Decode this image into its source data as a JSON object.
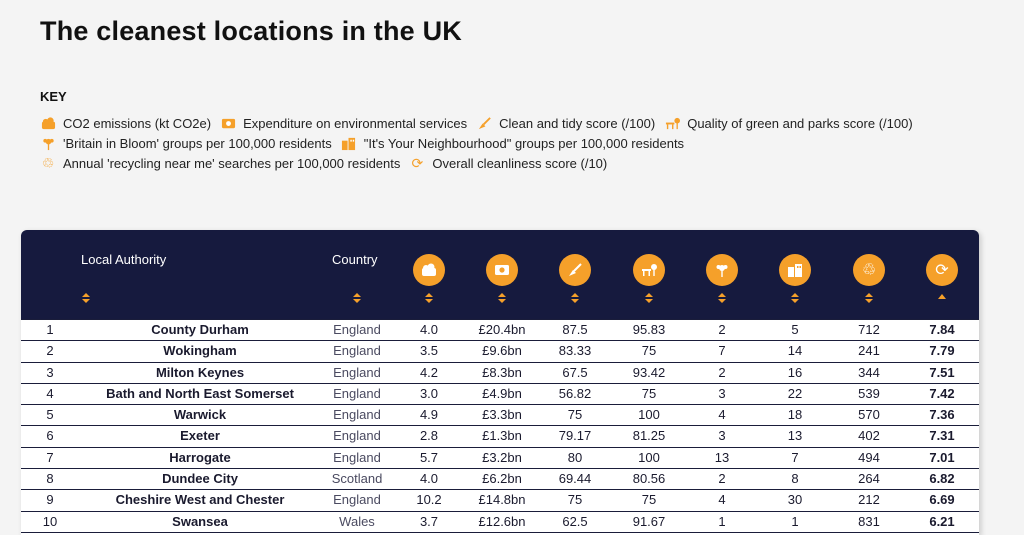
{
  "title": "The cleanest locations in the UK",
  "key": {
    "heading": "KEY",
    "items": [
      {
        "icon": "co2-cloud-icon",
        "label": "CO2 emissions (kt CO2e)"
      },
      {
        "icon": "money-icon",
        "label": "Expenditure on environmental services"
      },
      {
        "icon": "broom-icon",
        "label": "Clean and tidy score (/100)"
      },
      {
        "icon": "park-bench-icon",
        "label": "Quality of green and parks score (/100)"
      },
      {
        "icon": "flower-icon",
        "label": "'Britain in Bloom' groups per 100,000 residents"
      },
      {
        "icon": "neighbourhood-icon",
        "label": "\"It's Your Neighbourhood\" groups per 100,000 residents"
      },
      {
        "icon": "recycle-icon",
        "label": "Annual 'recycling near me' searches per 100,000 residents"
      },
      {
        "icon": "refresh-icon",
        "label": "Overall cleanliness score (/10)"
      }
    ]
  },
  "accent_color": "#f5a02a",
  "header_color": "#161a3e",
  "table": {
    "headers": {
      "authority": "Local Authority",
      "country": "Country"
    },
    "column_icons": [
      "co2-cloud-icon",
      "money-icon",
      "broom-icon",
      "park-bench-icon",
      "flower-icon",
      "neighbourhood-icon",
      "recycle-icon",
      "refresh-icon"
    ],
    "rows": [
      {
        "rank": "1",
        "authority": "County Durham",
        "country": "England",
        "co2": "4.0",
        "spend": "£20.4bn",
        "tidy": "87.5",
        "green": "95.83",
        "bloom": "2",
        "neighbourhood": "5",
        "recycling": "712",
        "score": "7.84"
      },
      {
        "rank": "2",
        "authority": "Wokingham",
        "country": "England",
        "co2": "3.5",
        "spend": "£9.6bn",
        "tidy": "83.33",
        "green": "75",
        "bloom": "7",
        "neighbourhood": "14",
        "recycling": "241",
        "score": "7.79"
      },
      {
        "rank": "3",
        "authority": "Milton Keynes",
        "country": "England",
        "co2": "4.2",
        "spend": "£8.3bn",
        "tidy": "67.5",
        "green": "93.42",
        "bloom": "2",
        "neighbourhood": "16",
        "recycling": "344",
        "score": "7.51"
      },
      {
        "rank": "4",
        "authority": "Bath and North East Somerset",
        "country": "England",
        "co2": "3.0",
        "spend": "£4.9bn",
        "tidy": "56.82",
        "green": "75",
        "bloom": "3",
        "neighbourhood": "22",
        "recycling": "539",
        "score": "7.42"
      },
      {
        "rank": "5",
        "authority": "Warwick",
        "country": "England",
        "co2": "4.9",
        "spend": "£3.3bn",
        "tidy": "75",
        "green": "100",
        "bloom": "4",
        "neighbourhood": "18",
        "recycling": "570",
        "score": "7.36"
      },
      {
        "rank": "6",
        "authority": "Exeter",
        "country": "England",
        "co2": "2.8",
        "spend": "£1.3bn",
        "tidy": "79.17",
        "green": "81.25",
        "bloom": "3",
        "neighbourhood": "13",
        "recycling": "402",
        "score": "7.31"
      },
      {
        "rank": "7",
        "authority": "Harrogate",
        "country": "England",
        "co2": "5.7",
        "spend": "£3.2bn",
        "tidy": "80",
        "green": "100",
        "bloom": "13",
        "neighbourhood": "7",
        "recycling": "494",
        "score": "7.01"
      },
      {
        "rank": "8",
        "authority": "Dundee City",
        "country": "Scotland",
        "co2": "4.0",
        "spend": "£6.2bn",
        "tidy": "69.44",
        "green": "80.56",
        "bloom": "2",
        "neighbourhood": "8",
        "recycling": "264",
        "score": "6.82"
      },
      {
        "rank": "9",
        "authority": "Cheshire West and Chester",
        "country": "England",
        "co2": "10.2",
        "spend": "£14.8bn",
        "tidy": "75",
        "green": "75",
        "bloom": "4",
        "neighbourhood": "30",
        "recycling": "212",
        "score": "6.69"
      },
      {
        "rank": "10",
        "authority": "Swansea",
        "country": "Wales",
        "co2": "3.7",
        "spend": "£12.6bn",
        "tidy": "62.5",
        "green": "91.67",
        "bloom": "1",
        "neighbourhood": "1",
        "recycling": "831",
        "score": "6.21"
      }
    ]
  }
}
